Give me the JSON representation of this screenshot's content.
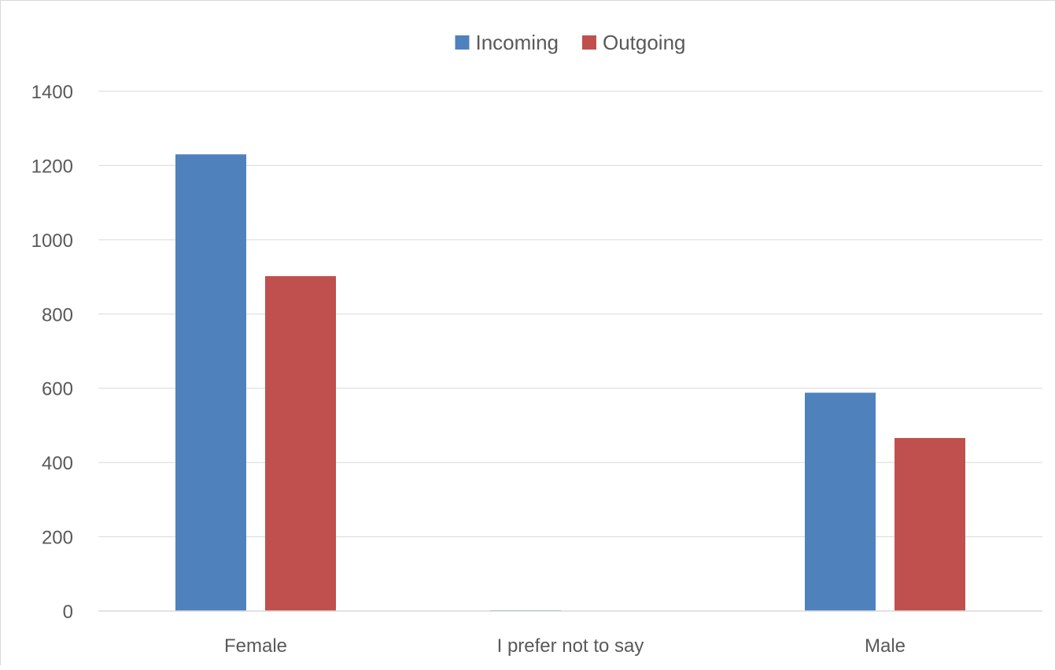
{
  "chart_data": {
    "type": "bar",
    "title": "",
    "xlabel": "",
    "ylabel": "",
    "categories": [
      "Female",
      "I prefer not to say",
      "Male"
    ],
    "series": [
      {
        "name": "Incoming",
        "values": [
          1230,
          2,
          588
        ],
        "color": "#4f81bd"
      },
      {
        "name": "Outgoing",
        "values": [
          902,
          1,
          466
        ],
        "color": "#c0504d"
      }
    ],
    "ylim": [
      0,
      1400
    ],
    "yticks": [
      0,
      200,
      400,
      600,
      800,
      1000,
      1200,
      1400
    ],
    "grid": true,
    "gridline_color": "#d9d9d9",
    "legend_position": "top"
  }
}
